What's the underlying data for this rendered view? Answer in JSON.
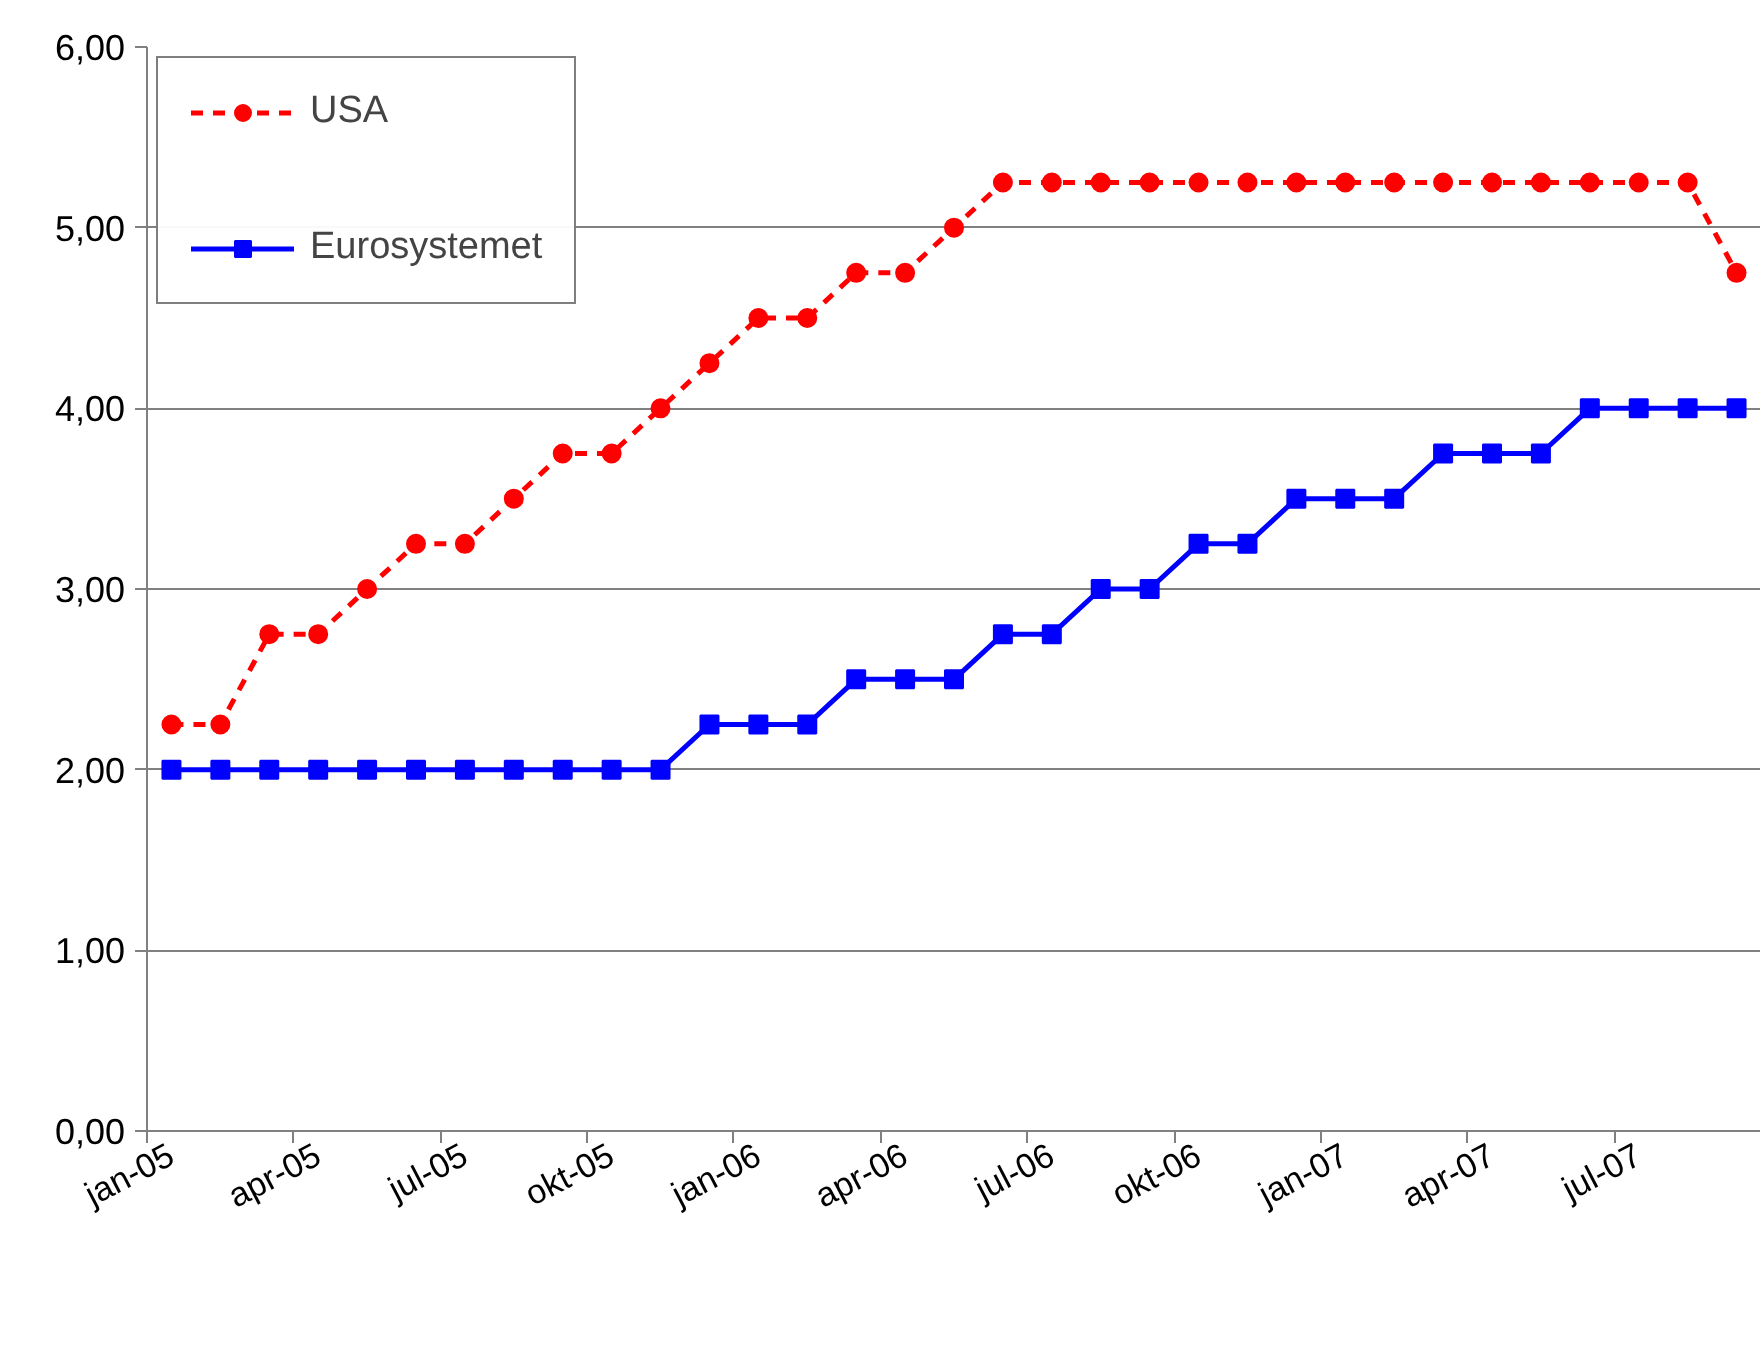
{
  "chart_data": {
    "type": "line",
    "categories": [
      "jan-05",
      null,
      null,
      "apr-05",
      null,
      null,
      "jul-05",
      null,
      null,
      "okt-05",
      null,
      null,
      "jan-06",
      null,
      null,
      "apr-06",
      null,
      null,
      "jul-06",
      null,
      null,
      "okt-06",
      null,
      null,
      "jan-07",
      null,
      null,
      "apr-07",
      null,
      null,
      "jul-07",
      null,
      null
    ],
    "series": [
      {
        "name": "USA",
        "color": "#ff0000",
        "line_style": "dashed",
        "marker": "circle",
        "values": [
          2.25,
          2.25,
          2.75,
          2.75,
          3.0,
          3.25,
          3.25,
          3.5,
          3.75,
          3.75,
          4.0,
          4.25,
          4.5,
          4.5,
          4.75,
          4.75,
          5.0,
          5.25,
          5.25,
          5.25,
          5.25,
          5.25,
          5.25,
          5.25,
          5.25,
          5.25,
          5.25,
          5.25,
          5.25,
          5.25,
          5.25,
          5.25,
          4.75
        ]
      },
      {
        "name": "Eurosystemet",
        "color": "#0000ff",
        "line_style": "solid",
        "marker": "square",
        "values": [
          2.0,
          2.0,
          2.0,
          2.0,
          2.0,
          2.0,
          2.0,
          2.0,
          2.0,
          2.0,
          2.0,
          2.25,
          2.25,
          2.25,
          2.5,
          2.5,
          2.5,
          2.75,
          2.75,
          3.0,
          3.0,
          3.25,
          3.25,
          3.5,
          3.5,
          3.5,
          3.75,
          3.75,
          3.75,
          4.0,
          4.0,
          4.0,
          4.0
        ]
      }
    ],
    "ylim": [
      0,
      6
    ],
    "yticks": [
      {
        "value": 0,
        "label": "0,00"
      },
      {
        "value": 1,
        "label": "1,00"
      },
      {
        "value": 2,
        "label": "2,00"
      },
      {
        "value": 3,
        "label": "3,00"
      },
      {
        "value": 4,
        "label": "4,00"
      },
      {
        "value": 5,
        "label": "5,00"
      },
      {
        "value": 6,
        "label": "6,00"
      }
    ],
    "grid": "y",
    "legend": "top left"
  }
}
